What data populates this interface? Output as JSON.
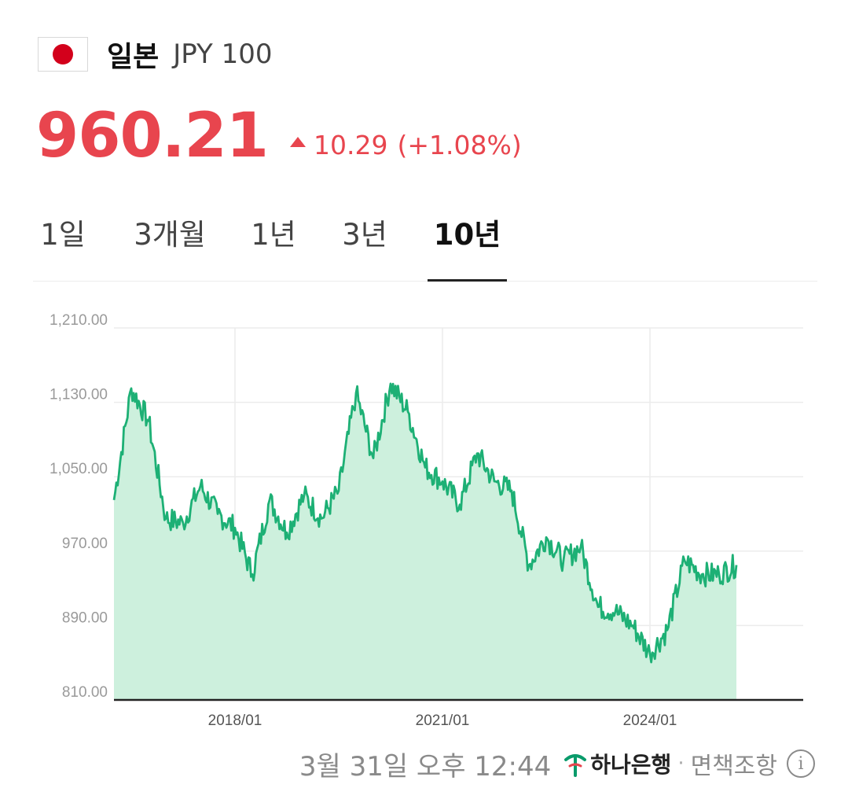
{
  "header": {
    "country": "일본",
    "code": "JPY 100",
    "flag_icon": "japan-flag-icon"
  },
  "quote": {
    "price": "960.21",
    "change": "10.29",
    "change_pct": "(+1.08%)",
    "direction": "up",
    "color": "#e8454e"
  },
  "tabs": [
    {
      "label": "1일",
      "active": false
    },
    {
      "label": "3개월",
      "active": false
    },
    {
      "label": "1년",
      "active": false
    },
    {
      "label": "3년",
      "active": false
    },
    {
      "label": "10년",
      "active": true
    }
  ],
  "chart_data": {
    "type": "area",
    "ylim": [
      810,
      1210
    ],
    "yticks": [
      "1,210.00",
      "1,130.00",
      "1,050.00",
      "970.00",
      "890.00",
      "810.00"
    ],
    "xticks": [
      "2018/01",
      "2021/01",
      "2024/01"
    ],
    "line_color": "#1db075",
    "fill_color": "#cdf0dd",
    "grid": true,
    "series": [
      {
        "x": [
          "2016/04",
          "2016/07",
          "2016/10",
          "2017/01",
          "2017/04",
          "2017/07",
          "2017/10",
          "2018/01",
          "2018/04",
          "2018/07",
          "2018/10",
          "2019/01",
          "2019/04",
          "2019/07",
          "2019/10",
          "2020/01",
          "2020/04",
          "2020/07",
          "2020/10",
          "2021/01",
          "2021/04",
          "2021/07",
          "2021/10",
          "2022/01",
          "2022/04",
          "2022/07",
          "2022/10",
          "2023/01",
          "2023/04",
          "2023/07",
          "2023/10",
          "2024/01",
          "2024/04",
          "2024/07",
          "2024/10",
          "2025/01",
          "2025/04"
        ],
        "values": [
          1025,
          1145,
          1110,
          1005,
          1000,
          1040,
          1010,
          995,
          945,
          1025,
          990,
          1030,
          1005,
          1035,
          1140,
          1070,
          1150,
          1120,
          1060,
          1045,
          1020,
          1075,
          1045,
          1035,
          955,
          985,
          960,
          975,
          910,
          905,
          890,
          860,
          885,
          960,
          945,
          945,
          955
        ]
      }
    ]
  },
  "footer": {
    "timestamp": "3월 31일 오후 12:44",
    "bank_name": "하나은행",
    "bank_icon": "hana-bank-logo-icon",
    "separator": "·",
    "disclaimer": "면책조항",
    "info_icon": "info-icon"
  }
}
